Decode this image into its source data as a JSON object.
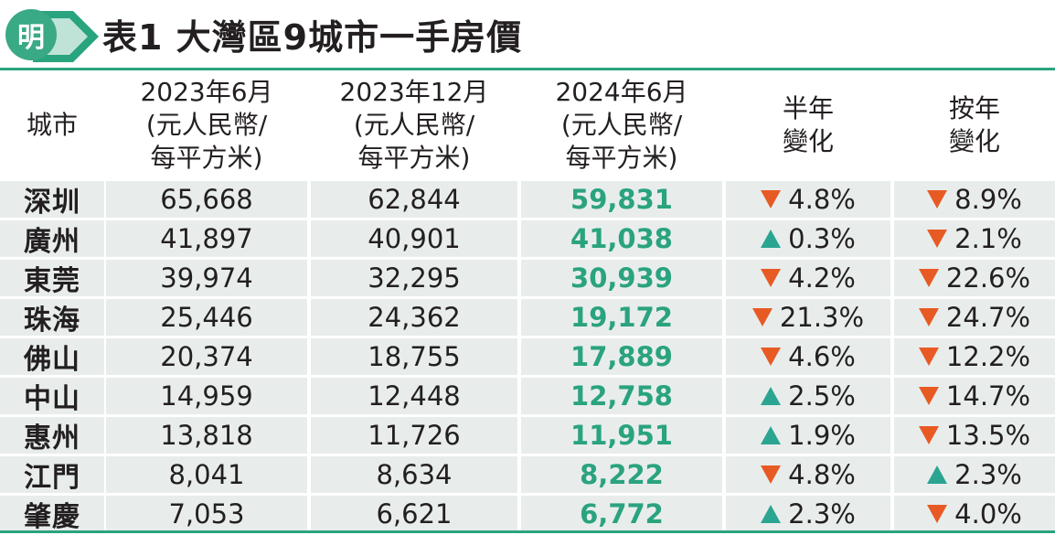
{
  "header": {
    "logo_char": "明",
    "title": "表1 大灣區9城市一手房價"
  },
  "colors": {
    "accent": "#2aa37f",
    "down": "#e85a24",
    "up": "#2aa591",
    "row_bg": "#e8edec"
  },
  "columns": [
    {
      "lines": [
        "城市"
      ]
    },
    {
      "lines": [
        "2023年6月",
        "(元人民幣/",
        "每平方米)"
      ]
    },
    {
      "lines": [
        "2023年12月",
        "(元人民幣/",
        "每平方米)"
      ]
    },
    {
      "lines": [
        "2024年6月",
        "(元人民幣/",
        "每平方米)"
      ]
    },
    {
      "lines": [
        "半年",
        "變化"
      ]
    },
    {
      "lines": [
        "按年",
        "變化"
      ]
    }
  ],
  "rows": [
    {
      "city": "深圳",
      "jun2023": "65,668",
      "dec2023": "62,844",
      "jun2024": "59,831",
      "half": "4.8%",
      "half_dir": "down",
      "yoy": "8.9%",
      "yoy_dir": "down"
    },
    {
      "city": "廣州",
      "jun2023": "41,897",
      "dec2023": "40,901",
      "jun2024": "41,038",
      "half": "0.3%",
      "half_dir": "up",
      "yoy": "2.1%",
      "yoy_dir": "down"
    },
    {
      "city": "東莞",
      "jun2023": "39,974",
      "dec2023": "32,295",
      "jun2024": "30,939",
      "half": "4.2%",
      "half_dir": "down",
      "yoy": "22.6%",
      "yoy_dir": "down"
    },
    {
      "city": "珠海",
      "jun2023": "25,446",
      "dec2023": "24,362",
      "jun2024": "19,172",
      "half": "21.3%",
      "half_dir": "down",
      "yoy": "24.7%",
      "yoy_dir": "down"
    },
    {
      "city": "佛山",
      "jun2023": "20,374",
      "dec2023": "18,755",
      "jun2024": "17,889",
      "half": "4.6%",
      "half_dir": "down",
      "yoy": "12.2%",
      "yoy_dir": "down"
    },
    {
      "city": "中山",
      "jun2023": "14,959",
      "dec2023": "12,448",
      "jun2024": "12,758",
      "half": "2.5%",
      "half_dir": "up",
      "yoy": "14.7%",
      "yoy_dir": "down"
    },
    {
      "city": "惠州",
      "jun2023": "13,818",
      "dec2023": "11,726",
      "jun2024": "11,951",
      "half": "1.9%",
      "half_dir": "up",
      "yoy": "13.5%",
      "yoy_dir": "down"
    },
    {
      "city": "江門",
      "jun2023": "8,041",
      "dec2023": "8,634",
      "jun2024": "8,222",
      "half": "4.8%",
      "half_dir": "down",
      "yoy": "2.3%",
      "yoy_dir": "up"
    },
    {
      "city": "肇慶",
      "jun2023": "7,053",
      "dec2023": "6,621",
      "jun2024": "6,772",
      "half": "2.3%",
      "half_dir": "up",
      "yoy": "4.0%",
      "yoy_dir": "down"
    }
  ]
}
